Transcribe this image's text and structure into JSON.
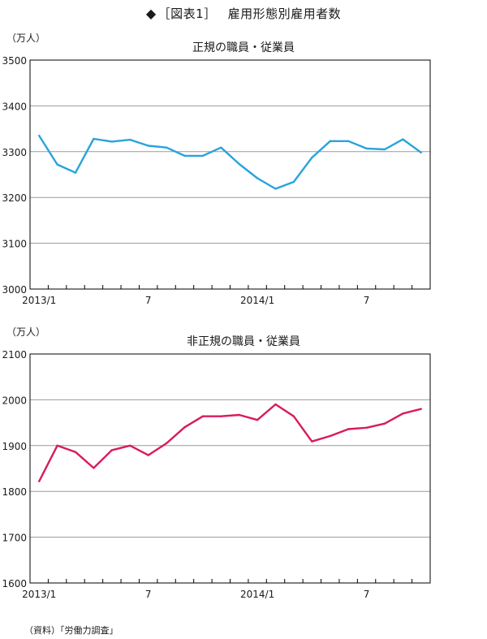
{
  "header": {
    "marker": "◆",
    "bracket_label": "［図表1］",
    "title": "雇用形態別雇用者数"
  },
  "source_note": "（資料）「労働力調査」",
  "colors": {
    "regular": "#29a3dd",
    "nonregular": "#d81b60",
    "grid": "#9a9a9a",
    "axis": "#000000"
  },
  "chart_data": [
    {
      "type": "line",
      "title": "正規の職員・従業員",
      "ylabel": "（万人）",
      "xlabel": "",
      "ylim": [
        3000,
        3500
      ],
      "yticks": [
        3000,
        3100,
        3200,
        3300,
        3400,
        3500
      ],
      "grid": true,
      "x_tick_labels": [
        {
          "index": 0,
          "label": "2013/1"
        },
        {
          "index": 6,
          "label": "7"
        },
        {
          "index": 12,
          "label": "2014/1"
        },
        {
          "index": 18,
          "label": "7"
        }
      ],
      "series": [
        {
          "color": "#29a3dd",
          "values": [
            3335,
            3272,
            3254,
            3328,
            3322,
            3326,
            3313,
            3309,
            3291,
            3291,
            3309,
            3273,
            3242,
            3219,
            3234,
            3287,
            3323,
            3323,
            3307,
            3305,
            3327,
            3298
          ]
        }
      ]
    },
    {
      "type": "line",
      "title": "非正規の職員・従業員",
      "ylabel": "（万人）",
      "xlabel": "",
      "ylim": [
        1600,
        2100
      ],
      "yticks": [
        1600,
        1700,
        1800,
        1900,
        2000,
        2100
      ],
      "grid": true,
      "x_tick_labels": [
        {
          "index": 0,
          "label": "2013/1"
        },
        {
          "index": 6,
          "label": "7"
        },
        {
          "index": 12,
          "label": "2014/1"
        },
        {
          "index": 18,
          "label": "7"
        }
      ],
      "series": [
        {
          "color": "#d81b60",
          "values": [
            1822,
            1900,
            1886,
            1851,
            1890,
            1900,
            1879,
            1905,
            1940,
            1964,
            1964,
            1967,
            1956,
            1990,
            1964,
            1909,
            1921,
            1936,
            1939,
            1948,
            1970,
            1980
          ]
        }
      ]
    }
  ]
}
